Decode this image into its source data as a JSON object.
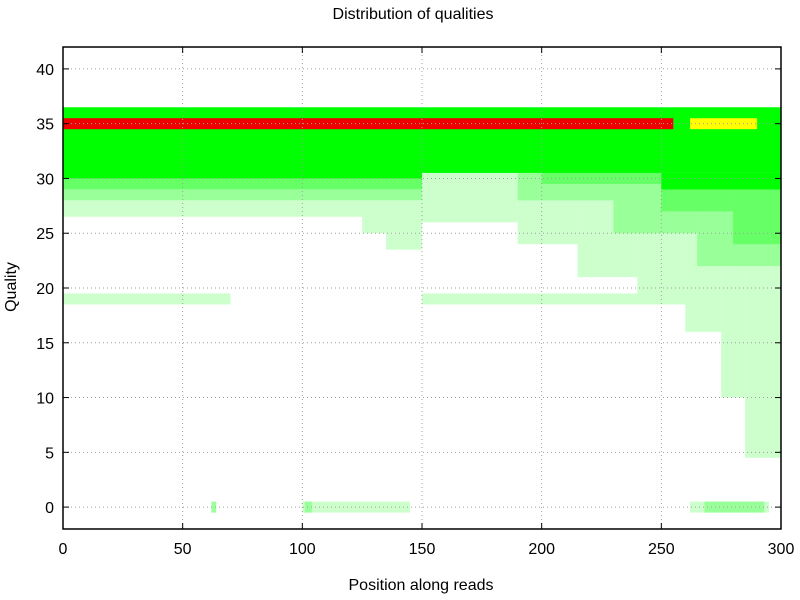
{
  "chart_data": {
    "type": "heatmap",
    "title": "Distribution of qualities",
    "xlabel": "Position along reads",
    "ylabel": "Quality",
    "xlim": [
      0,
      300
    ],
    "ylim": [
      -2,
      42
    ],
    "x_ticks": [
      0,
      50,
      100,
      150,
      200,
      250,
      300
    ],
    "y_ticks": [
      0,
      5,
      10,
      15,
      20,
      25,
      30,
      35,
      40
    ],
    "grid": true,
    "colors": {
      "band_pale": "#ccffcc",
      "band_light": "#99ff99",
      "band_mid": "#66ff66",
      "band_core": "#00ff00",
      "peak": "#ee0000",
      "peak_late": "#ffff00"
    },
    "bands": [
      {
        "level": "core",
        "q_low": 30.5,
        "q_high": 36.5,
        "x_start": 0,
        "x_end": 300
      },
      {
        "level": "core",
        "q_low": 29.5,
        "q_high": 31.0,
        "x_start": 0,
        "x_end": 150
      },
      {
        "level": "mid",
        "q_low": 29.0,
        "q_high": 30.0,
        "x_start": 0,
        "x_end": 150
      },
      {
        "level": "light",
        "q_low": 28.0,
        "q_high": 29.0,
        "x_start": 0,
        "x_end": 150
      },
      {
        "level": "pale",
        "q_low": 26.5,
        "q_high": 28.0,
        "x_start": 0,
        "x_end": 150
      },
      {
        "level": "pale",
        "q_low": 25.0,
        "q_high": 27.0,
        "x_start": 125,
        "x_end": 150
      },
      {
        "level": "pale",
        "q_low": 23.5,
        "q_high": 25.0,
        "x_start": 135,
        "x_end": 150
      },
      {
        "level": "pale",
        "q_low": 18.5,
        "q_high": 19.5,
        "x_start": 0,
        "x_end": 70
      },
      {
        "level": "pale",
        "q_low": 18.5,
        "q_high": 19.5,
        "x_start": 150,
        "x_end": 270
      },
      {
        "level": "pale",
        "q_low": 26.0,
        "q_high": 30.5,
        "x_start": 150,
        "x_end": 190
      },
      {
        "level": "pale",
        "q_low": 24.0,
        "q_high": 30.5,
        "x_start": 190,
        "x_end": 215
      },
      {
        "level": "pale",
        "q_low": 21.0,
        "q_high": 30.5,
        "x_start": 215,
        "x_end": 240
      },
      {
        "level": "pale",
        "q_low": 18.5,
        "q_high": 30.5,
        "x_start": 240,
        "x_end": 260
      },
      {
        "level": "pale",
        "q_low": 16.0,
        "q_high": 30.5,
        "x_start": 260,
        "x_end": 275
      },
      {
        "level": "pale",
        "q_low": 10.0,
        "q_high": 30.5,
        "x_start": 275,
        "x_end": 285
      },
      {
        "level": "pale",
        "q_low": 4.5,
        "q_high": 30.5,
        "x_start": 285,
        "x_end": 300
      },
      {
        "level": "light",
        "q_low": 28.0,
        "q_high": 30.5,
        "x_start": 190,
        "x_end": 230
      },
      {
        "level": "light",
        "q_low": 25.0,
        "q_high": 30.5,
        "x_start": 230,
        "x_end": 265
      },
      {
        "level": "light",
        "q_low": 22.0,
        "q_high": 30.5,
        "x_start": 265,
        "x_end": 300
      },
      {
        "level": "mid",
        "q_low": 29.5,
        "q_high": 30.5,
        "x_start": 200,
        "x_end": 250
      },
      {
        "level": "mid",
        "q_low": 27.0,
        "q_high": 30.5,
        "x_start": 250,
        "x_end": 280
      },
      {
        "level": "mid",
        "q_low": 24.0,
        "q_high": 30.5,
        "x_start": 280,
        "x_end": 300
      },
      {
        "level": "core",
        "q_low": 29.0,
        "q_high": 30.5,
        "x_start": 250,
        "x_end": 300
      },
      {
        "level": "pale",
        "q_low": -0.5,
        "q_high": 0.5,
        "x_start": 100,
        "x_end": 145
      },
      {
        "level": "pale",
        "q_low": -0.5,
        "q_high": 0.5,
        "x_start": 262,
        "x_end": 295
      },
      {
        "level": "light",
        "q_low": -0.5,
        "q_high": 0.5,
        "x_start": 62,
        "x_end": 64
      },
      {
        "level": "light",
        "q_low": -0.5,
        "q_high": 0.5,
        "x_start": 101,
        "x_end": 104
      },
      {
        "level": "light",
        "q_low": -0.5,
        "q_high": 0.5,
        "x_start": 268,
        "x_end": 293
      },
      {
        "level": "peak",
        "q_low": 34.5,
        "q_high": 35.5,
        "x_start": 0,
        "x_end": 255
      },
      {
        "level": "peak_late",
        "q_low": 34.5,
        "q_high": 35.5,
        "x_start": 262,
        "x_end": 290
      }
    ]
  }
}
